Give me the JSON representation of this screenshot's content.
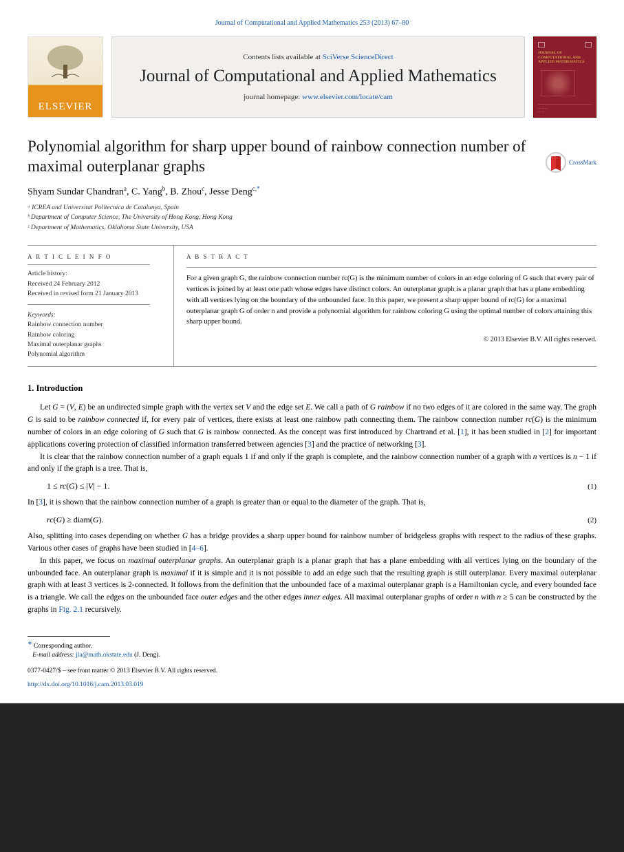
{
  "citation": "Journal of Computational and Applied Mathematics 253 (2013) 67–80",
  "header": {
    "contents_prefix": "Contents lists available at ",
    "contents_link": "SciVerse ScienceDirect",
    "journal_name": "Journal of Computational and Applied Mathematics",
    "homepage_prefix": "journal homepage: ",
    "homepage_url": "www.elsevier.com/locate/cam",
    "elsevier_label": "ELSEVIER",
    "cover_title": "JOURNAL OF COMPUTATIONAL AND APPLIED MATHEMATICS"
  },
  "crossmark_label": "CrossMark",
  "title": "Polynomial algorithm for sharp upper bound of rainbow connection number of maximal outerplanar graphs",
  "authors_html": "Shyam Sundar Chandran<sup>a</sup>, C. Yang<sup>b</sup>, B. Zhou<sup>c</sup>, Jesse Deng<sup>c,</sup><sup class='ast'>*</sup>",
  "affiliations": [
    "ᵃ ICREA and Universitat Politecnica de Catalunya, Spain",
    "ᵇ Department of Computer Science, The University of Hong Kong, Hong Kong",
    "ᶜ Department of Mathematics, Oklahoma State University, USA"
  ],
  "article_info_label": "A R T I C L E   I N F O",
  "history": [
    "Article history:",
    "Received 24 February 2012",
    "Received in revised form 21 January 2013"
  ],
  "keywords_label": "Keywords:",
  "keywords": [
    "Rainbow connection number",
    "Rainbow coloring",
    "Maximal outerplanar graphs",
    "Polynomial algorithm"
  ],
  "abstract_label": "A B S T R A C T",
  "abstract": "For a given graph G, the rainbow connection number rc(G) is the minimum number of colors in an edge coloring of G such that every pair of vertices is joined by at least one path whose edges have distinct colors. An outerplanar graph is a planar graph that has a plane embedding with all vertices lying on the boundary of the unbounded face. In this paper, we present a sharp upper bound of rc(G) for a maximal outerplanar graph G of order n and provide a polynomial algorithm for rainbow coloring G using the optimal number of colors attaining this sharp upper bound.",
  "copyright_line": "© 2013 Elsevier B.V. All rights reserved.",
  "section_1_heading": "1. Introduction",
  "para1_a": "Let ",
  "para1_b": " be an undirected simple graph with the vertex set ",
  "para1_c": " and the edge set ",
  "para1_d": ". We call a path of ",
  "para1_e": " ",
  "para1_f": " if no two edges of it are colored in the same way. The graph ",
  "para1_g": " is said to be ",
  "para1_h": " if, for every pair of vertices, there exists at least one rainbow path connecting them. The rainbow connection number ",
  "para1_i": " is the minimum number of colors in an edge coloring of ",
  "para1_j": " such that ",
  "para1_k": " is rainbow connected. As the concept was first introduced by Chartrand et al. [",
  "cite1": "1",
  "para1_l": "], it has been studied in [",
  "cite2": "2",
  "para1_m": "] for important applications covering protection of classified information transferred between agencies [",
  "cite3": "3",
  "para1_n": "] and the practice of networking [",
  "cite4": "3",
  "para1_o": "].",
  "para2_a": "It is clear that the rainbow connection number of a graph equals 1 if and only if the graph is complete, and the rainbow connection number of a graph with ",
  "para2_b": " vertices is ",
  "para2_c": " if and only if the graph is a tree. That is,",
  "eqn1": "1 ≤ rc(G) ≤ |V| − 1.",
  "eqn1_num": "(1)",
  "para3_a": "In [",
  "cite5": "3",
  "para3_b": "], it is shown that the rainbow connection number of a graph is greater than or equal to the diameter of the graph. That is,",
  "eqn2": "rc(G) ≥ diam(G).",
  "eqn2_num": "(2)",
  "para4_a": "Also, splitting into cases depending on whether ",
  "para4_b": " has a bridge provides a sharp upper bound for rainbow number of bridgeless graphs with respect to the radius of these graphs.  Various other cases of graphs have been studied in [",
  "cite6": "4–6",
  "para4_c": "].",
  "para5_a": "In this paper, we focus on ",
  "para5_b": ". An outerplanar graph is a planar graph that has a plane embedding with all vertices lying on the boundary of the unbounded face. An outerplanar graph is ",
  "para5_c": " if it is simple and it is not possible to add an edge such that the resulting graph is still outerplanar. Every maximal outerplanar graph with at least 3 vertices is 2-connected. It follows from the definition that the unbounded face of a maximal outerplanar graph is a Hamiltonian cycle, and every bounded face is a triangle. We call the edges on the unbounded face ",
  "para5_d": " and the other edges ",
  "para5_e": ". All maximal outerplanar graphs of order ",
  "para5_f": " with ",
  "para5_g": " can be constructed by the graphs in ",
  "figref": "Fig. 2.1",
  "para5_h": " recursively.",
  "footnote_marker": "∗",
  "footnote_label": "Corresponding author.",
  "footnote_email_label": "E-mail address: ",
  "footnote_email": "jla@math.okstate.edu",
  "footnote_email_tail": " (J. Deng).",
  "doi_copy": "0377-0427/$ – see front matter © 2013 Elsevier B.V. All rights reserved.",
  "doi_url": "http://dx.doi.org/10.1016/j.cam.2013.03.019"
}
